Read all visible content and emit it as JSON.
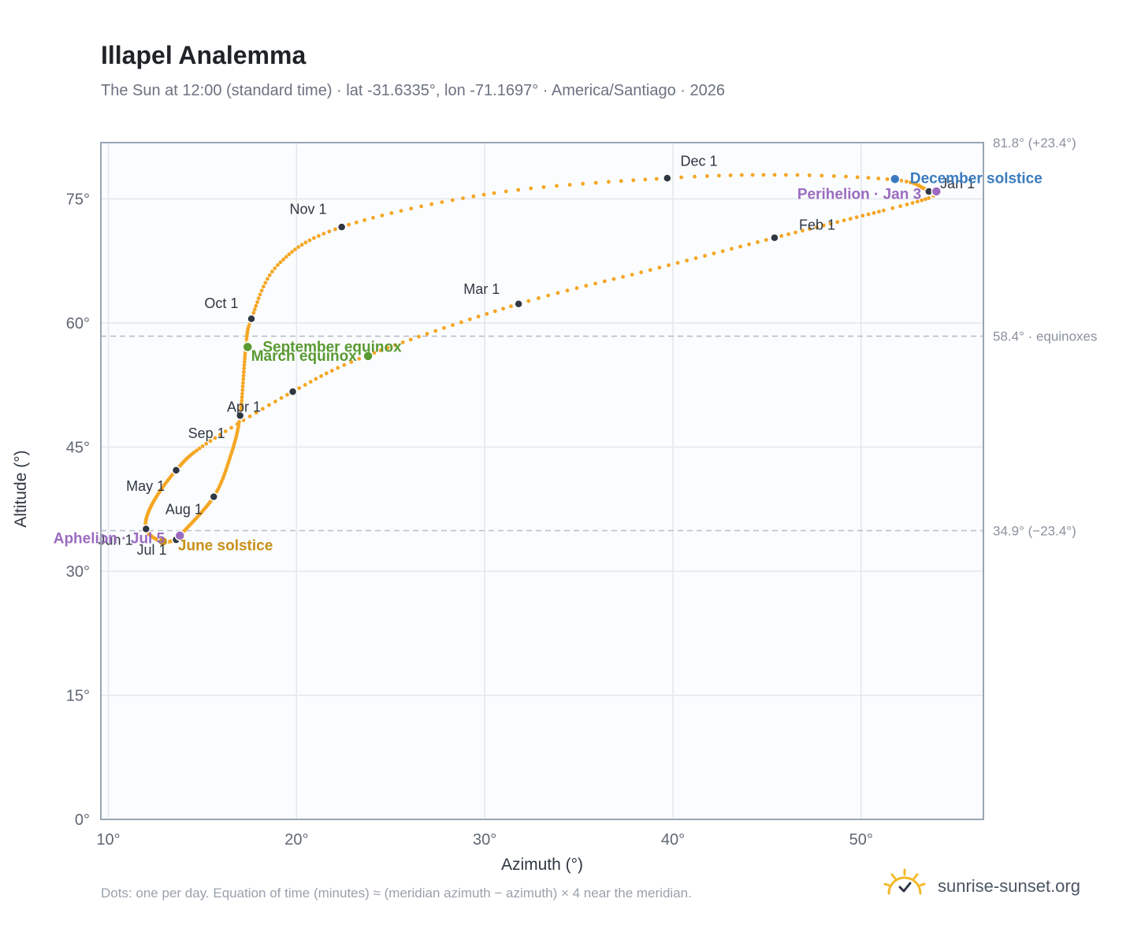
{
  "title": "Illapel Analemma",
  "subtitle": "The Sun at 12:00 (standard time) · lat -31.6335°, lon -71.1697° · America/Santiago · 2026",
  "footnote": "Dots: one per day. Equation of time (minutes) ≈ (meridian azimuth − azimuth) × 4 near the meridian.",
  "brand": {
    "name": "sunrise-sunset.org",
    "icon": "sun-check-icon",
    "color": "#f2b92a"
  },
  "chart_data": {
    "type": "scatter",
    "xlabel": "Azimuth (°)",
    "ylabel": "Altitude (°)",
    "xlim": [
      9.6,
      56.5
    ],
    "ylim": [
      0,
      81.8
    ],
    "xticks": [
      10,
      20,
      30,
      40,
      50
    ],
    "yticks": [
      0,
      15,
      30,
      45,
      60,
      75
    ],
    "xtick_labels": [
      "10°",
      "20°",
      "30°",
      "40°",
      "50°"
    ],
    "ytick_labels": [
      "0°",
      "15°",
      "30°",
      "45°",
      "60°",
      "75°"
    ],
    "grid": true,
    "colors": {
      "curve": "#f5a623",
      "month": "#2f3742",
      "june": "#c8901a",
      "december": "#3a7bbf",
      "equinox": "#5a9a32",
      "apsis": "#9b6bc0",
      "refline": "#b8bec7",
      "frame": "#9aa5b4",
      "plot_bg": "#fafcfe"
    },
    "reference_lines": [
      {
        "y": 81.8,
        "label": "81.8° (+23.4°)"
      },
      {
        "y": 58.4,
        "label": "58.4° · equinoxes"
      },
      {
        "y": 34.9,
        "label": "34.9° (−23.4°)"
      }
    ],
    "curve_anchors": [
      {
        "doy": 0,
        "x": 53.6,
        "y": 75.9
      },
      {
        "doy": 2,
        "x": 54.0,
        "y": 75.9
      },
      {
        "doy": 6,
        "x": 53.6,
        "y": 75.1
      },
      {
        "doy": 14,
        "x": 51.2,
        "y": 73.6
      },
      {
        "doy": 31,
        "x": 45.4,
        "y": 70.3
      },
      {
        "doy": 45,
        "x": 38.8,
        "y": 66.4
      },
      {
        "doy": 59,
        "x": 31.8,
        "y": 62.3
      },
      {
        "doy": 78,
        "x": 23.8,
        "y": 56.1
      },
      {
        "doy": 90,
        "x": 19.8,
        "y": 51.7
      },
      {
        "doy": 105,
        "x": 15.2,
        "y": 45.4
      },
      {
        "doy": 120,
        "x": 13.6,
        "y": 42.2
      },
      {
        "doy": 136,
        "x": 12.3,
        "y": 38.0
      },
      {
        "doy": 151,
        "x": 12.0,
        "y": 35.1
      },
      {
        "doy": 171,
        "x": 12.8,
        "y": 33.6
      },
      {
        "doy": 181,
        "x": 13.6,
        "y": 33.8
      },
      {
        "doy": 186,
        "x": 13.8,
        "y": 34.3
      },
      {
        "doy": 212,
        "x": 15.6,
        "y": 39.0
      },
      {
        "doy": 228,
        "x": 16.5,
        "y": 44.0
      },
      {
        "doy": 243,
        "x": 17.0,
        "y": 48.8
      },
      {
        "doy": 264,
        "x": 17.3,
        "y": 57.0
      },
      {
        "doy": 273,
        "x": 17.6,
        "y": 60.5
      },
      {
        "doy": 288,
        "x": 19.0,
        "y": 67.0
      },
      {
        "doy": 304,
        "x": 22.4,
        "y": 71.6
      },
      {
        "doy": 320,
        "x": 30.5,
        "y": 75.7
      },
      {
        "doy": 334,
        "x": 39.7,
        "y": 77.5
      },
      {
        "doy": 344,
        "x": 46.0,
        "y": 77.9
      },
      {
        "doy": 354,
        "x": 51.8,
        "y": 77.3
      },
      {
        "doy": 364,
        "x": 53.4,
        "y": 76.2
      },
      {
        "doy": 365,
        "x": 53.6,
        "y": 75.9
      }
    ],
    "month_markers": [
      {
        "label": "Jan 1",
        "x": 53.6,
        "y": 75.9,
        "lx": 54.2,
        "ly": 76.3,
        "anchor": "start"
      },
      {
        "label": "Feb 1",
        "x": 45.4,
        "y": 70.3,
        "lx": 46.7,
        "ly": 71.3,
        "anchor": "start"
      },
      {
        "label": "Mar 1",
        "x": 31.8,
        "y": 62.3,
        "lx": 30.8,
        "ly": 63.5,
        "anchor": "end"
      },
      {
        "label": "Apr 1",
        "x": 19.8,
        "y": 51.7,
        "lx": 18.1,
        "ly": 49.3,
        "anchor": "end"
      },
      {
        "label": "May 1",
        "x": 13.6,
        "y": 42.2,
        "lx": 13.0,
        "ly": 39.7,
        "anchor": "end"
      },
      {
        "label": "Jun 1",
        "x": 12.0,
        "y": 35.1,
        "lx": 11.3,
        "ly": 33.2,
        "anchor": "end"
      },
      {
        "label": "Jul 1",
        "x": 13.6,
        "y": 33.8,
        "lx": 13.1,
        "ly": 32.0,
        "anchor": "end"
      },
      {
        "label": "Aug 1",
        "x": 15.6,
        "y": 39.0,
        "lx": 15.0,
        "ly": 36.9,
        "anchor": "end"
      },
      {
        "label": "Sep 1",
        "x": 17.0,
        "y": 48.8,
        "lx": 16.2,
        "ly": 46.1,
        "anchor": "end"
      },
      {
        "label": "Oct 1",
        "x": 17.6,
        "y": 60.5,
        "lx": 16.9,
        "ly": 61.8,
        "anchor": "end"
      },
      {
        "label": "Nov 1",
        "x": 22.4,
        "y": 71.6,
        "lx": 21.6,
        "ly": 73.2,
        "anchor": "end"
      },
      {
        "label": "Dec 1",
        "x": 39.7,
        "y": 77.5,
        "lx": 40.4,
        "ly": 79.0,
        "anchor": "start"
      }
    ],
    "events": [
      {
        "label": "June solstice",
        "x": 12.9,
        "y": 33.6,
        "lx": 13.7,
        "ly": 32.5,
        "anchor": "start",
        "kind": "june"
      },
      {
        "label": "December solstice",
        "x": 51.8,
        "y": 77.4,
        "lx": 52.6,
        "ly": 76.9,
        "anchor": "start",
        "kind": "december"
      },
      {
        "label": "March equinox",
        "x": 23.8,
        "y": 56.0,
        "lx": 23.2,
        "ly": 55.4,
        "anchor": "end",
        "kind": "equinox"
      },
      {
        "label": "September equinox",
        "x": 17.4,
        "y": 57.1,
        "lx": 18.2,
        "ly": 56.5,
        "anchor": "start",
        "kind": "equinox"
      },
      {
        "label": "Perihelion · Jan 3",
        "x": 54.0,
        "y": 75.9,
        "lx": 53.2,
        "ly": 75.0,
        "anchor": "end",
        "kind": "apsis"
      },
      {
        "label": "Aphelion · Jul 5",
        "x": 13.8,
        "y": 34.3,
        "lx": 13.0,
        "ly": 33.4,
        "anchor": "end",
        "kind": "apsis"
      }
    ]
  }
}
